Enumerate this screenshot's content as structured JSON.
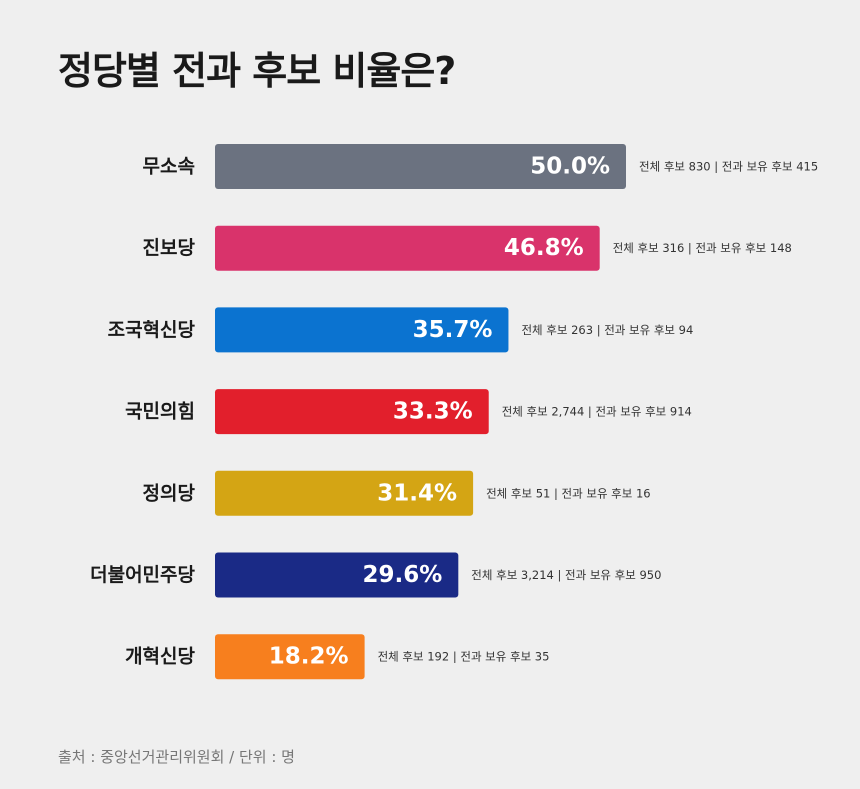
{
  "chart_data": {
    "type": "bar",
    "orientation": "horizontal",
    "title": "정당별 전과 후보 비율은?",
    "xlim": [
      0,
      100
    ],
    "grid": false,
    "categories": [
      "무소속",
      "진보당",
      "조국혁신당",
      "국민의힘",
      "정의당",
      "더불어민주당",
      "개혁신당"
    ],
    "values": [
      50.0,
      46.8,
      35.7,
      33.3,
      31.4,
      29.6,
      18.2
    ],
    "value_labels": [
      "50.0%",
      "46.8%",
      "35.7%",
      "33.3%",
      "31.4%",
      "29.6%",
      "18.2%"
    ],
    "annotations": [
      "전체 후보 830 | 전과 보유 후보 415",
      "전체 후보 316 | 전과 보유 후보 148",
      "전체 후보 263 | 전과 보유 후보 94",
      "전체 후보 2,744 | 전과 보유 후보 914",
      "전체 후보 51 | 전과 보유 후보 16",
      "전체 후보 3,214 | 전과 보유 후보 950",
      "전체 후보 192 | 전과 보유 후보 35"
    ],
    "colors": [
      "#6b7280",
      "#d9336b",
      "#0b73d0",
      "#e21f2c",
      "#d4a514",
      "#1a2a86",
      "#f77f1e"
    ],
    "source": "출처 : 중앙선거관리위원회 / 단위 : 명"
  }
}
